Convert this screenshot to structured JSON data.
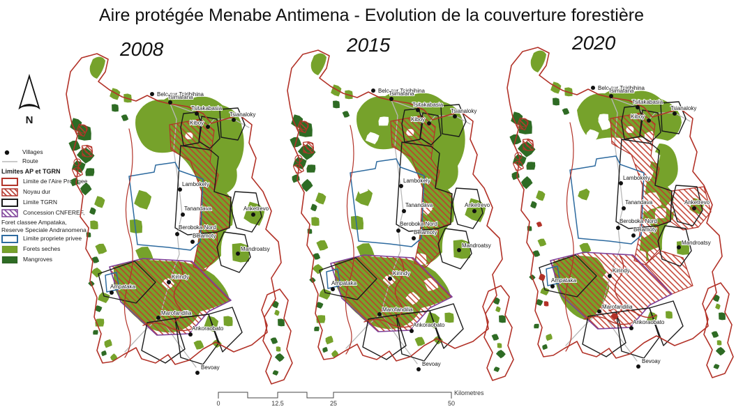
{
  "title": "Aire protégée Menabe Antimena - Evolution de la couverture forestière",
  "years": [
    "2008",
    "2015",
    "2020"
  ],
  "north_label": "N",
  "legend": {
    "villages_label": "Villages",
    "route_label": "Route",
    "header": "Limites AP et TGRN",
    "items": [
      {
        "label": "Limite de l'Aire Protegee",
        "swatch": "outline",
        "color": "#b23228",
        "extra_lines": []
      },
      {
        "label": "Noyau dur",
        "swatch": "hatch",
        "color": "#b23228",
        "extra_lines": []
      },
      {
        "label": "Limite TGRN",
        "swatch": "outline",
        "color": "#1a1a1a",
        "extra_lines": []
      },
      {
        "label": "Concession CNFEREF,",
        "swatch": "hatch",
        "color": "#7d3f98",
        "extra_lines": [
          "Foret classee Ampataka,",
          "Reserve Speciale Andranomena"
        ]
      },
      {
        "label": "Limite propriete privee",
        "swatch": "outline",
        "color": "#2d6a9f",
        "extra_lines": []
      },
      {
        "label": "Forets seches",
        "swatch": "fill",
        "color": "#76a22b",
        "extra_lines": []
      },
      {
        "label": "Mangroves",
        "swatch": "fill",
        "color": "#2e6b24",
        "extra_lines": []
      }
    ]
  },
  "villages": [
    "Belo sur Tsiribihina",
    "Tsimafana",
    "Tsitakabasia",
    "Tsianaloky",
    "Kiboy",
    "Lambokely",
    "Tanandava",
    "Beroboka Nord",
    "Belamoty",
    "Anketrevo",
    "Mandroatsy",
    "Kirindy",
    "Ampataka",
    "Marofandilia",
    "Ankoraobato",
    "Bevoay"
  ],
  "scalebar": {
    "ticks": [
      "0",
      "12.5",
      "25",
      "50"
    ],
    "unit": "Kilometres"
  },
  "colors": {
    "boundary_red": "#b23228",
    "hatch_red": "#c03a2b",
    "purple": "#7d3f98",
    "blue": "#2d6a9f",
    "black": "#1a1a1a",
    "olive": "#76a22b",
    "dark_green": "#2e6b24",
    "route_gray": "#b8b8b8"
  }
}
